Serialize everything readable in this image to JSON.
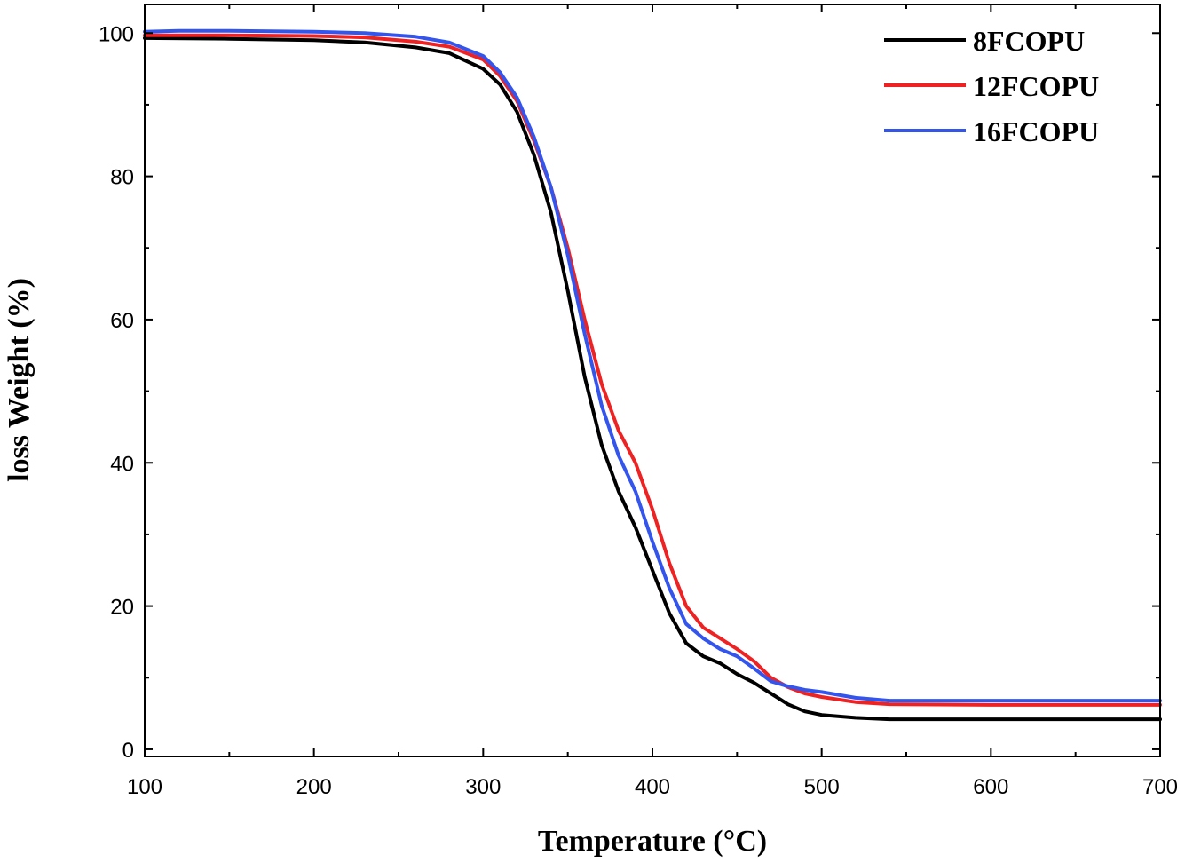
{
  "chart_data": {
    "type": "line",
    "title": "",
    "xlabel": "Temperature (°C)",
    "ylabel": "loss Weight (%)",
    "xlim": [
      100,
      700
    ],
    "ylim": [
      -1,
      104
    ],
    "x_ticks": [
      100,
      200,
      300,
      400,
      500,
      600,
      700
    ],
    "y_ticks": [
      0,
      20,
      40,
      60,
      80,
      100
    ],
    "grid": false,
    "legend_position": "top-right",
    "series": [
      {
        "name": "8FCOPU",
        "color": "#000000",
        "points": [
          [
            100,
            99.3
          ],
          [
            150,
            99.2
          ],
          [
            200,
            99.0
          ],
          [
            230,
            98.7
          ],
          [
            260,
            98.0
          ],
          [
            280,
            97.2
          ],
          [
            300,
            95.0
          ],
          [
            310,
            92.8
          ],
          [
            320,
            89.0
          ],
          [
            330,
            83.0
          ],
          [
            340,
            75.0
          ],
          [
            350,
            64.0
          ],
          [
            360,
            52.0
          ],
          [
            370,
            42.5
          ],
          [
            380,
            36.0
          ],
          [
            390,
            31.0
          ],
          [
            400,
            25.0
          ],
          [
            410,
            19.0
          ],
          [
            420,
            14.8
          ],
          [
            430,
            13.0
          ],
          [
            440,
            12.0
          ],
          [
            450,
            10.5
          ],
          [
            460,
            9.3
          ],
          [
            470,
            7.8
          ],
          [
            480,
            6.3
          ],
          [
            490,
            5.3
          ],
          [
            500,
            4.8
          ],
          [
            520,
            4.4
          ],
          [
            540,
            4.2
          ],
          [
            600,
            4.2
          ],
          [
            700,
            4.2
          ]
        ]
      },
      {
        "name": "12FCOPU",
        "color": "#ee2222",
        "points": [
          [
            100,
            99.7
          ],
          [
            150,
            99.7
          ],
          [
            200,
            99.6
          ],
          [
            230,
            99.4
          ],
          [
            260,
            98.8
          ],
          [
            280,
            98.1
          ],
          [
            300,
            96.3
          ],
          [
            310,
            94.0
          ],
          [
            320,
            90.5
          ],
          [
            330,
            85.0
          ],
          [
            340,
            78.5
          ],
          [
            350,
            70.0
          ],
          [
            360,
            60.0
          ],
          [
            370,
            51.0
          ],
          [
            380,
            44.5
          ],
          [
            390,
            40.0
          ],
          [
            400,
            33.5
          ],
          [
            410,
            26.0
          ],
          [
            420,
            20.0
          ],
          [
            430,
            17.0
          ],
          [
            440,
            15.5
          ],
          [
            450,
            14.0
          ],
          [
            460,
            12.3
          ],
          [
            470,
            10.0
          ],
          [
            480,
            8.7
          ],
          [
            490,
            7.8
          ],
          [
            500,
            7.3
          ],
          [
            520,
            6.6
          ],
          [
            540,
            6.3
          ],
          [
            600,
            6.2
          ],
          [
            700,
            6.2
          ]
        ]
      },
      {
        "name": "16FCOPU",
        "color": "#3355ee",
        "points": [
          [
            100,
            100.2
          ],
          [
            120,
            100.3
          ],
          [
            150,
            100.3
          ],
          [
            200,
            100.2
          ],
          [
            230,
            100.0
          ],
          [
            260,
            99.5
          ],
          [
            280,
            98.7
          ],
          [
            300,
            96.8
          ],
          [
            310,
            94.5
          ],
          [
            320,
            91.0
          ],
          [
            330,
            85.5
          ],
          [
            340,
            78.5
          ],
          [
            350,
            69.0
          ],
          [
            360,
            58.0
          ],
          [
            370,
            48.0
          ],
          [
            380,
            41.0
          ],
          [
            390,
            36.0
          ],
          [
            400,
            29.0
          ],
          [
            410,
            22.5
          ],
          [
            420,
            17.5
          ],
          [
            430,
            15.5
          ],
          [
            440,
            14.0
          ],
          [
            450,
            13.0
          ],
          [
            460,
            11.3
          ],
          [
            470,
            9.5
          ],
          [
            480,
            8.8
          ],
          [
            490,
            8.3
          ],
          [
            500,
            8.0
          ],
          [
            520,
            7.2
          ],
          [
            540,
            6.8
          ],
          [
            600,
            6.8
          ],
          [
            700,
            6.8
          ]
        ]
      }
    ]
  }
}
